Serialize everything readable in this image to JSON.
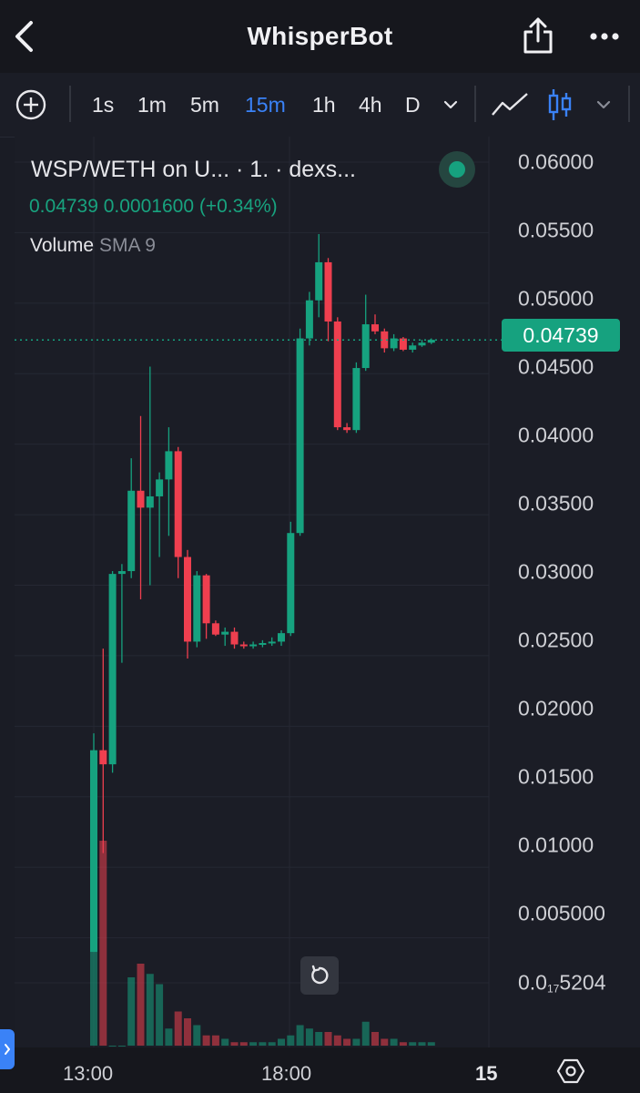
{
  "header": {
    "title": "WhisperBot",
    "back_icon": "chevron-left-icon",
    "share_icon": "share-icon",
    "more_icon": "more-horizontal-icon"
  },
  "toolbar": {
    "add_indicator_icon": "plus-circle-icon",
    "intervals": [
      "1s",
      "1m",
      "5m",
      "15m",
      "1h",
      "4h",
      "D"
    ],
    "active_interval": "15m",
    "interval_dropdown_icon": "chevron-down-icon",
    "line_chart_icon": "line-chart-icon",
    "candles_icon": "candlestick-icon",
    "chart_type_dropdown_icon": "chevron-down-icon"
  },
  "legend": {
    "symbol_title": "WSP/WETH on U...   · 1. · dexs...",
    "status_dot_icon": "live-dot-icon",
    "values": "0.04739  0.0001600  (+0.34%)",
    "volume_label": "Volume",
    "volume_sma": "SMA 9"
  },
  "price_axis": {
    "labels": [
      "0.06000",
      "0.05500",
      "0.05000",
      "0.04500",
      "0.04000",
      "0.03500",
      "0.03000",
      "0.02500",
      "0.02000",
      "0.01500",
      "0.01000",
      "0.005000"
    ],
    "bottom_label_main": "0.0",
    "bottom_label_sub": "17",
    "bottom_label_tail": "5204",
    "current_price": "0.04739"
  },
  "time_axis": {
    "labels": [
      "13:00",
      "18:00",
      "15"
    ]
  },
  "reset_icon": "reset-rotate-icon",
  "settings_icon": "settings-gear-icon",
  "side_tab_icon": "chevron-right-icon",
  "colors": {
    "up": "#16a27f",
    "down": "#ef3f4f",
    "active_interval": "#3a82f7",
    "background": "#1b1d26"
  },
  "chart_data": {
    "type": "candlestick",
    "interval": "15m",
    "price_range": [
      0.0,
      0.06
    ],
    "price_ticks": [
      0.06,
      0.055,
      0.05,
      0.045,
      0.04,
      0.035,
      0.03,
      0.025,
      0.02,
      0.015,
      0.01,
      0.005
    ],
    "current_price": 0.04739,
    "candles": [
      {
        "o": 0.004,
        "h": 0.0195,
        "l": 0.004,
        "c": 0.0183
      },
      {
        "o": 0.0183,
        "h": 0.0255,
        "l": 0.011,
        "c": 0.0173
      },
      {
        "o": 0.0173,
        "h": 0.031,
        "l": 0.0167,
        "c": 0.0308
      },
      {
        "o": 0.0308,
        "h": 0.0315,
        "l": 0.0245,
        "c": 0.031
      },
      {
        "o": 0.031,
        "h": 0.039,
        "l": 0.0305,
        "c": 0.0367
      },
      {
        "o": 0.0367,
        "h": 0.042,
        "l": 0.029,
        "c": 0.0355
      },
      {
        "o": 0.0355,
        "h": 0.0455,
        "l": 0.03,
        "c": 0.0363
      },
      {
        "o": 0.0363,
        "h": 0.038,
        "l": 0.032,
        "c": 0.0375
      },
      {
        "o": 0.0375,
        "h": 0.0412,
        "l": 0.0335,
        "c": 0.0395
      },
      {
        "o": 0.0395,
        "h": 0.0398,
        "l": 0.0305,
        "c": 0.032
      },
      {
        "o": 0.032,
        "h": 0.0325,
        "l": 0.0248,
        "c": 0.026
      },
      {
        "o": 0.026,
        "h": 0.031,
        "l": 0.0256,
        "c": 0.0307
      },
      {
        "o": 0.0307,
        "h": 0.0308,
        "l": 0.0262,
        "c": 0.0273
      },
      {
        "o": 0.0273,
        "h": 0.0275,
        "l": 0.0264,
        "c": 0.0265
      },
      {
        "o": 0.0265,
        "h": 0.027,
        "l": 0.0257,
        "c": 0.0267
      },
      {
        "o": 0.0267,
        "h": 0.027,
        "l": 0.0255,
        "c": 0.0258
      },
      {
        "o": 0.0258,
        "h": 0.026,
        "l": 0.0255,
        "c": 0.0257
      },
      {
        "o": 0.0257,
        "h": 0.026,
        "l": 0.0255,
        "c": 0.0258
      },
      {
        "o": 0.0258,
        "h": 0.0261,
        "l": 0.0256,
        "c": 0.0259
      },
      {
        "o": 0.0259,
        "h": 0.0263,
        "l": 0.0257,
        "c": 0.026
      },
      {
        "o": 0.026,
        "h": 0.0268,
        "l": 0.0257,
        "c": 0.0266
      },
      {
        "o": 0.0266,
        "h": 0.0345,
        "l": 0.0264,
        "c": 0.0337
      },
      {
        "o": 0.0337,
        "h": 0.0482,
        "l": 0.0335,
        "c": 0.0475
      },
      {
        "o": 0.0475,
        "h": 0.0508,
        "l": 0.047,
        "c": 0.0502
      },
      {
        "o": 0.0502,
        "h": 0.0549,
        "l": 0.049,
        "c": 0.0529
      },
      {
        "o": 0.0529,
        "h": 0.0532,
        "l": 0.0473,
        "c": 0.0487
      },
      {
        "o": 0.0487,
        "h": 0.049,
        "l": 0.041,
        "c": 0.0412
      },
      {
        "o": 0.0412,
        "h": 0.0415,
        "l": 0.0408,
        "c": 0.041
      },
      {
        "o": 0.041,
        "h": 0.0458,
        "l": 0.0408,
        "c": 0.0454
      },
      {
        "o": 0.0454,
        "h": 0.0506,
        "l": 0.0452,
        "c": 0.0485
      },
      {
        "o": 0.0485,
        "h": 0.0492,
        "l": 0.0478,
        "c": 0.048
      },
      {
        "o": 0.048,
        "h": 0.0482,
        "l": 0.0465,
        "c": 0.0468
      },
      {
        "o": 0.0468,
        "h": 0.0478,
        "l": 0.0466,
        "c": 0.0475
      },
      {
        "o": 0.0475,
        "h": 0.0476,
        "l": 0.0466,
        "c": 0.0467
      },
      {
        "o": 0.0467,
        "h": 0.0472,
        "l": 0.0465,
        "c": 0.047
      },
      {
        "o": 0.047,
        "h": 0.0474,
        "l": 0.0469,
        "c": 0.0472
      },
      {
        "o": 0.0472,
        "h": 0.0475,
        "l": 0.0471,
        "c": 0.0474
      }
    ],
    "volume": [
      39,
      60,
      0,
      0,
      20,
      24,
      21,
      18,
      5,
      10,
      8,
      6,
      3,
      3,
      2,
      1,
      1,
      1,
      1,
      1,
      2,
      3,
      6,
      5,
      4,
      4,
      3,
      2,
      2,
      7,
      4,
      2,
      2,
      1,
      1,
      1,
      1
    ],
    "volume_max": 60
  }
}
